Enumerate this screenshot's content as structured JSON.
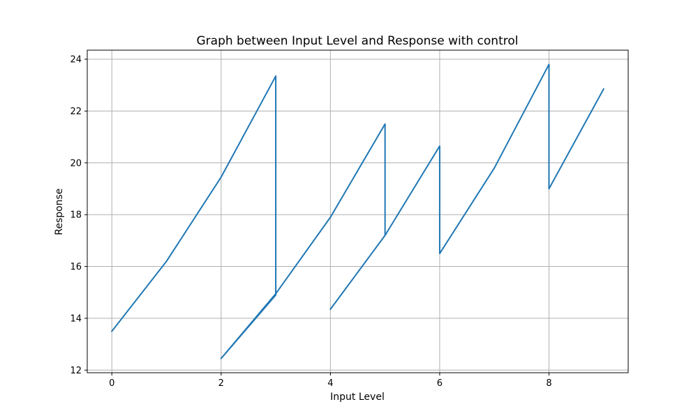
{
  "chart_data": {
    "type": "line",
    "title": "Graph between Input Level and Response with control",
    "xlabel": "Input Level",
    "ylabel": "Response",
    "xlim": [
      -0.45,
      9.45
    ],
    "ylim": [
      11.9,
      24.35
    ],
    "xticks": [
      0,
      2,
      4,
      6,
      8
    ],
    "yticks": [
      12,
      14,
      16,
      18,
      20,
      22,
      24
    ],
    "grid": true,
    "legend": "none",
    "series": [
      {
        "color": "#1f77b4",
        "x": [
          0,
          1,
          2,
          3,
          3,
          2,
          3,
          4,
          5,
          5,
          4,
          5,
          6,
          6,
          7,
          8,
          8,
          9
        ],
        "y": [
          13.5,
          16.2,
          19.45,
          23.35,
          14.9,
          12.45,
          14.95,
          17.9,
          21.5,
          17.2,
          14.35,
          17.2,
          20.65,
          16.5,
          19.8,
          23.8,
          19.0,
          22.85
        ]
      }
    ]
  }
}
